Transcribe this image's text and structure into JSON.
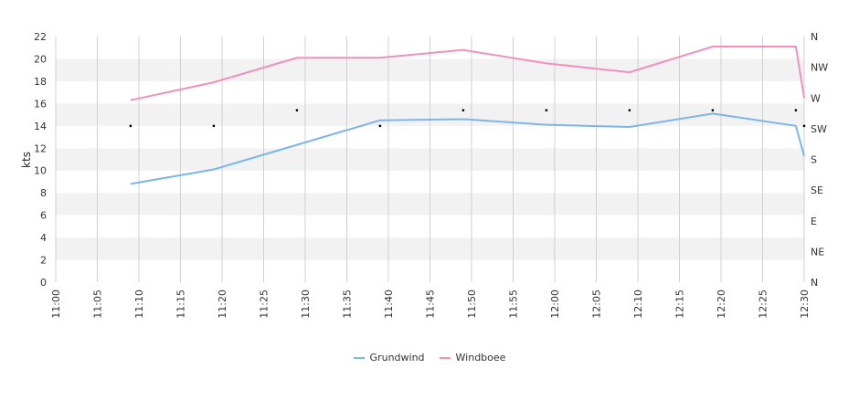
{
  "chart_data": {
    "type": "line",
    "ylabel": "kts",
    "ylim": [
      0,
      22
    ],
    "yticks": [
      0,
      2,
      4,
      6,
      8,
      10,
      12,
      14,
      16,
      18,
      20,
      22
    ],
    "y2ticks": [
      "N",
      "NE",
      "E",
      "SE",
      "S",
      "SW",
      "W",
      "NW",
      "N"
    ],
    "xticks": [
      "11:00",
      "11:05",
      "11:10",
      "11:15",
      "11:20",
      "11:25",
      "11:30",
      "11:35",
      "11:40",
      "11:45",
      "11:50",
      "11:55",
      "12:00",
      "12:05",
      "12:10",
      "12:15",
      "12:20",
      "12:25",
      "12:30"
    ],
    "grid": true,
    "legend_position": "bottom-center",
    "series": [
      {
        "name": "Grundwind",
        "color": "#7cb5ec",
        "points": [
          [
            "11:09",
            8.8
          ],
          [
            "11:19",
            10.1
          ],
          [
            "11:29",
            12.3
          ],
          [
            "11:39",
            14.5
          ],
          [
            "11:49",
            14.6
          ],
          [
            "11:59",
            14.1
          ],
          [
            "12:09",
            13.9
          ],
          [
            "12:19",
            15.1
          ],
          [
            "12:29",
            14.0
          ],
          [
            "12:30",
            11.3
          ]
        ]
      },
      {
        "name": "Windboee",
        "color": "#f28fbf",
        "points": [
          [
            "11:09",
            16.3
          ],
          [
            "11:19",
            17.9
          ],
          [
            "11:29",
            20.1
          ],
          [
            "11:39",
            20.1
          ],
          [
            "11:49",
            20.8
          ],
          [
            "11:59",
            19.6
          ],
          [
            "12:09",
            18.8
          ],
          [
            "12:19",
            21.1
          ],
          [
            "12:29",
            21.1
          ],
          [
            "12:30",
            16.5
          ]
        ]
      }
    ],
    "direction_markers": [
      [
        "11:09",
        14.0
      ],
      [
        "11:19",
        14.0
      ],
      [
        "11:29",
        15.4
      ],
      [
        "11:39",
        14.0
      ],
      [
        "11:49",
        15.4
      ],
      [
        "11:59",
        15.4
      ],
      [
        "12:09",
        15.4
      ],
      [
        "12:19",
        15.4
      ],
      [
        "12:29",
        15.4
      ],
      [
        "12:30",
        14.0
      ]
    ]
  }
}
